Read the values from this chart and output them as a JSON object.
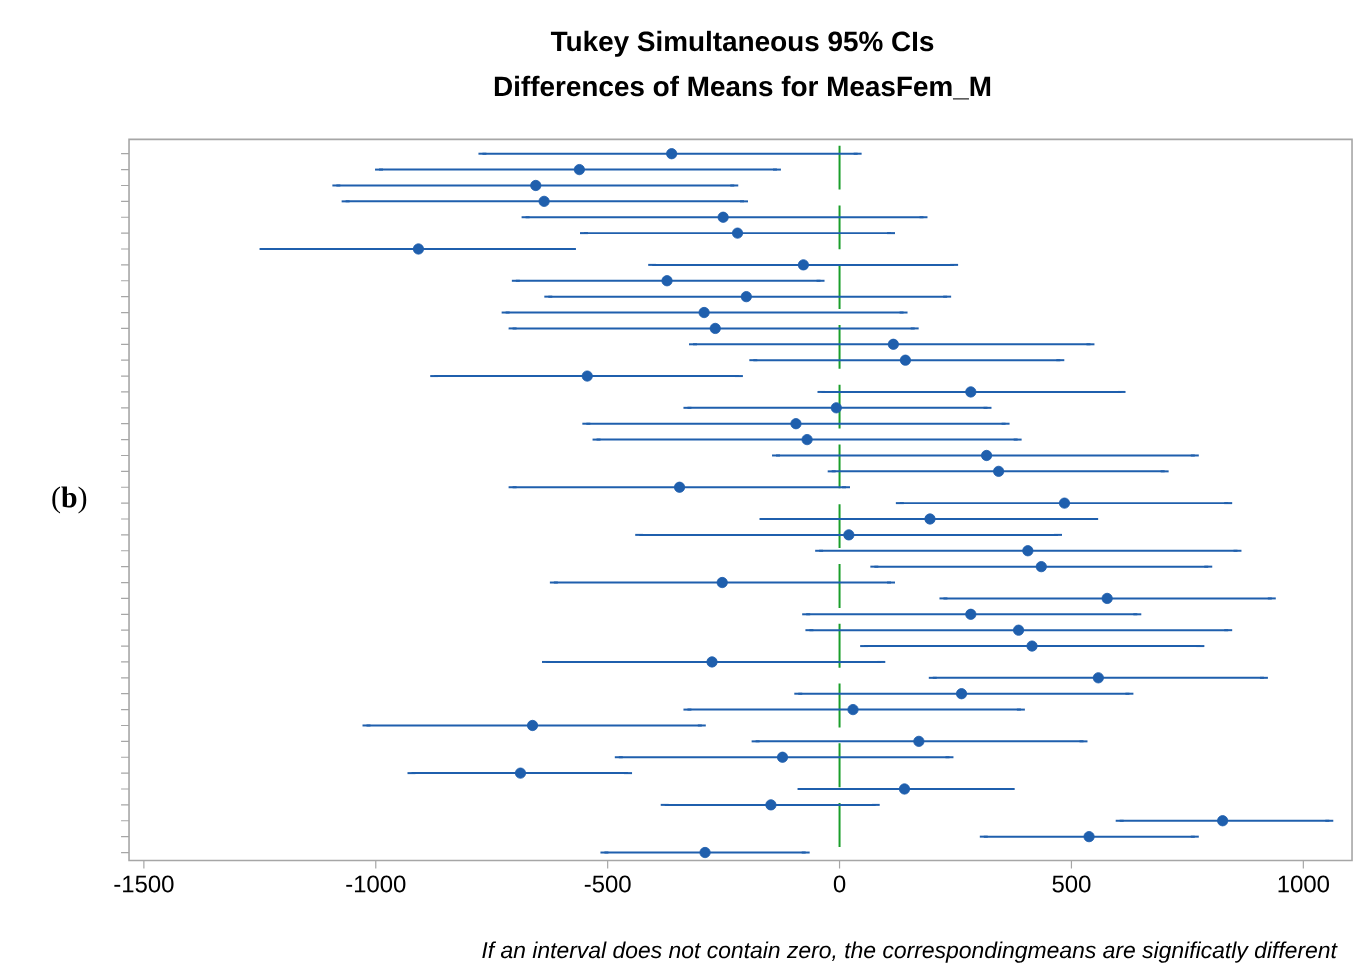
{
  "chart_data": {
    "type": "scatter",
    "orientation": "horizontal",
    "title": "Tukey Simultaneous 95% CIs",
    "subtitle": "Differences of Means for MeasFem_M",
    "annotations": [
      "(**b**)",
      "If an interval does not contain zero, the correspondingmeans are significatly different"
    ],
    "categories": [
      null,
      null,
      null,
      null,
      null,
      null,
      null,
      null,
      null,
      null,
      null,
      null,
      null,
      null,
      null,
      null,
      null,
      null,
      null,
      null,
      null,
      null,
      null,
      null,
      null,
      null,
      null,
      null,
      null,
      null,
      null,
      null,
      null,
      null,
      null,
      null,
      null,
      null,
      null,
      null,
      null,
      null,
      null,
      null,
      null
    ],
    "values": [
      -362,
      -561,
      -655,
      -637,
      -251,
      -220,
      -908,
      -78,
      -372,
      -201,
      -292,
      -268,
      116,
      142,
      -544,
      283,
      -7,
      -94,
      -70,
      317,
      343,
      -345,
      485,
      195,
      20,
      406,
      435,
      -253,
      577,
      283,
      386,
      415,
      -275,
      558,
      263,
      29,
      -662,
      171,
      -123,
      -688,
      140,
      -148,
      826,
      538,
      -290
    ],
    "errors": [
      [
        -770,
        39
      ],
      [
        -993,
        -135
      ],
      [
        -1085,
        -227
      ],
      [
        -1065,
        -206
      ],
      [
        -677,
        181
      ],
      [
        -551,
        111
      ],
      [
        -1242,
        -577
      ],
      [
        -404,
        247
      ],
      [
        -698,
        -41
      ],
      [
        -628,
        232
      ],
      [
        -720,
        138
      ],
      [
        -705,
        162
      ],
      [
        -316,
        541
      ],
      [
        -186,
        476
      ],
      [
        -874,
        -217
      ],
      [
        -39,
        608
      ],
      [
        -328,
        319
      ],
      [
        -546,
        358
      ],
      [
        -524,
        384
      ],
      [
        -137,
        766
      ],
      [
        -17,
        701
      ],
      [
        -705,
        14
      ],
      [
        130,
        838
      ],
      [
        -164,
        549
      ],
      [
        -432,
        471
      ],
      [
        -44,
        858
      ],
      [
        75,
        795
      ],
      [
        -616,
        111
      ],
      [
        224,
        932
      ],
      [
        -72,
        642
      ],
      [
        -65,
        838
      ],
      [
        53,
        778
      ],
      [
        -633,
        90
      ],
      [
        201,
        915
      ],
      [
        -89,
        625
      ],
      [
        -328,
        391
      ],
      [
        -1020,
        -297
      ],
      [
        -181,
        526
      ],
      [
        -476,
        237
      ],
      [
        -923,
        -456
      ],
      [
        -82,
        369
      ],
      [
        -377,
        78
      ],
      [
        604,
        1056
      ],
      [
        311,
        766
      ],
      [
        -507,
        -73
      ]
    ],
    "color": "#1f5fad",
    "marker": "circle",
    "xlim": [
      -1532,
      1105
    ],
    "xticks": [
      -1500,
      -1000,
      -500,
      0,
      500,
      1000
    ],
    "tick_labels": "x",
    "ref_lines": [
      {
        "axis": "x",
        "value": 0,
        "color": "#1a9e2a",
        "line_style": "dashed"
      }
    ]
  }
}
